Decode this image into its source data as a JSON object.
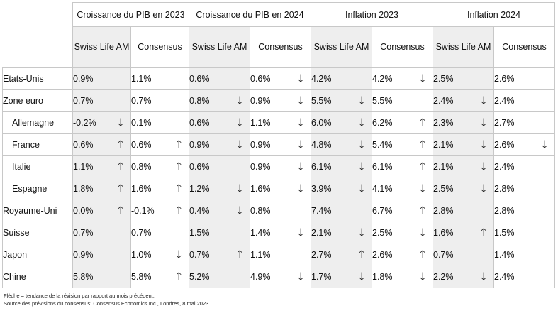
{
  "groups": [
    "Croissance du PIB en 2023",
    "Croissance du PIB en 2024",
    "Inflation 2023",
    "Inflation 2024"
  ],
  "subheaders": {
    "swisslife": "Swiss Life AM",
    "consensus": "Consensus"
  },
  "rows": [
    {
      "country": "Etats-Unis",
      "sub": false,
      "cells": [
        {
          "v": "0.9%",
          "a": ""
        },
        {
          "v": "1.1%",
          "a": ""
        },
        {
          "v": "0.6%",
          "a": ""
        },
        {
          "v": "0.6%",
          "a": "down"
        },
        {
          "v": "4.2%",
          "a": ""
        },
        {
          "v": "4.2%",
          "a": "down"
        },
        {
          "v": "2.5%",
          "a": ""
        },
        {
          "v": "2.6%",
          "a": ""
        }
      ]
    },
    {
      "country": "Zone euro",
      "sub": false,
      "cells": [
        {
          "v": "0.7%",
          "a": ""
        },
        {
          "v": "0.7%",
          "a": ""
        },
        {
          "v": "0.8%",
          "a": "down"
        },
        {
          "v": "0.9%",
          "a": "down"
        },
        {
          "v": "5.5%",
          "a": "down"
        },
        {
          "v": "5.5%",
          "a": ""
        },
        {
          "v": "2.4%",
          "a": "down"
        },
        {
          "v": "2.4%",
          "a": ""
        }
      ]
    },
    {
      "country": "Allemagne",
      "sub": true,
      "cells": [
        {
          "v": "-0.2%",
          "a": "down"
        },
        {
          "v": "0.1%",
          "a": ""
        },
        {
          "v": "0.6%",
          "a": "down"
        },
        {
          "v": "1.1%",
          "a": "down"
        },
        {
          "v": "6.0%",
          "a": "down"
        },
        {
          "v": "6.2%",
          "a": "up"
        },
        {
          "v": "2.3%",
          "a": "down"
        },
        {
          "v": "2.7%",
          "a": ""
        }
      ]
    },
    {
      "country": "France",
      "sub": true,
      "cells": [
        {
          "v": "0.6%",
          "a": "up"
        },
        {
          "v": "0.6%",
          "a": "up"
        },
        {
          "v": "0.9%",
          "a": "down"
        },
        {
          "v": "0.9%",
          "a": "down"
        },
        {
          "v": "4.8%",
          "a": "down"
        },
        {
          "v": "5.4%",
          "a": "up"
        },
        {
          "v": "2.1%",
          "a": "down"
        },
        {
          "v": "2.6%",
          "a": "down"
        }
      ]
    },
    {
      "country": "Italie",
      "sub": true,
      "cells": [
        {
          "v": "1.1%",
          "a": "up"
        },
        {
          "v": "0.8%",
          "a": "up"
        },
        {
          "v": "0.6%",
          "a": ""
        },
        {
          "v": "0.9%",
          "a": "down"
        },
        {
          "v": "6.1%",
          "a": "down"
        },
        {
          "v": "6.1%",
          "a": "up"
        },
        {
          "v": "2.1%",
          "a": "down"
        },
        {
          "v": "2.4%",
          "a": ""
        }
      ]
    },
    {
      "country": "Espagne",
      "sub": true,
      "cells": [
        {
          "v": "1.8%",
          "a": "up"
        },
        {
          "v": "1.6%",
          "a": "up"
        },
        {
          "v": "1.2%",
          "a": "down"
        },
        {
          "v": "1.6%",
          "a": "down"
        },
        {
          "v": "3.9%",
          "a": "down"
        },
        {
          "v": "4.1%",
          "a": "down"
        },
        {
          "v": "2.5%",
          "a": "down"
        },
        {
          "v": "2.8%",
          "a": ""
        }
      ]
    },
    {
      "country": "Royaume-Uni",
      "sub": false,
      "cells": [
        {
          "v": "0.0%",
          "a": "up"
        },
        {
          "v": "-0.1%",
          "a": "up"
        },
        {
          "v": "0.4%",
          "a": "down"
        },
        {
          "v": "0.8%",
          "a": ""
        },
        {
          "v": "7.4%",
          "a": ""
        },
        {
          "v": "6.7%",
          "a": "up"
        },
        {
          "v": "2.8%",
          "a": ""
        },
        {
          "v": "2.8%",
          "a": ""
        }
      ]
    },
    {
      "country": "Suisse",
      "sub": false,
      "cells": [
        {
          "v": "0.7%",
          "a": ""
        },
        {
          "v": "0.7%",
          "a": ""
        },
        {
          "v": "1.5%",
          "a": ""
        },
        {
          "v": "1.4%",
          "a": "down"
        },
        {
          "v": "2.1%",
          "a": "down"
        },
        {
          "v": "2.5%",
          "a": "down"
        },
        {
          "v": "1.6%",
          "a": "up"
        },
        {
          "v": "1.5%",
          "a": ""
        }
      ]
    },
    {
      "country": "Japon",
      "sub": false,
      "cells": [
        {
          "v": "0.9%",
          "a": ""
        },
        {
          "v": "1.0%",
          "a": "down"
        },
        {
          "v": "0.7%",
          "a": "up"
        },
        {
          "v": "1.1%",
          "a": ""
        },
        {
          "v": "2.7%",
          "a": "up"
        },
        {
          "v": "2.6%",
          "a": "up"
        },
        {
          "v": "0.7%",
          "a": ""
        },
        {
          "v": "1.4%",
          "a": ""
        }
      ]
    },
    {
      "country": "Chine",
      "sub": false,
      "cells": [
        {
          "v": "5.8%",
          "a": ""
        },
        {
          "v": "5.8%",
          "a": "up"
        },
        {
          "v": "5.2%",
          "a": ""
        },
        {
          "v": "4.9%",
          "a": "down"
        },
        {
          "v": "1.7%",
          "a": "down"
        },
        {
          "v": "1.8%",
          "a": "down"
        },
        {
          "v": "2.2%",
          "a": "down"
        },
        {
          "v": "2.4%",
          "a": ""
        }
      ]
    }
  ],
  "arrow_glyphs": {
    "up": "🡑",
    "down": "🡓"
  },
  "arrow_icon_names": {
    "up": "arrow-up-icon",
    "down": "arrow-down-icon"
  },
  "notes": {
    "line1": "Flèche = tendance de la révision par rapport au mois précédent;",
    "line2": "Source des prévisions du consensus: Consensus Economics Inc., Londres, 8 mai 2023"
  }
}
